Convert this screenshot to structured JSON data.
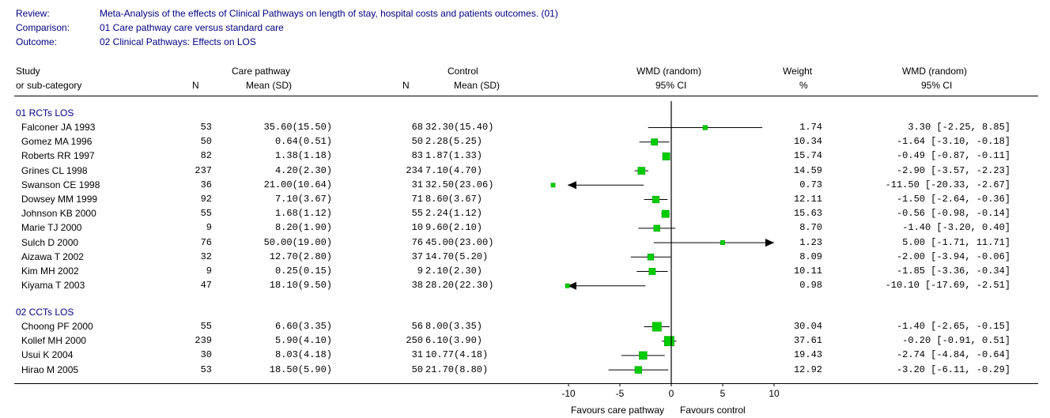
{
  "meta": {
    "review_label": "Review:",
    "review": "Meta-Analysis of the effects of Clinical Pathways on length of stay, hospital costs and patients outcomes. (01)",
    "comparison_label": "Comparison:",
    "comparison": "01 Care pathway care versus standard care",
    "outcome_label": "Outcome:",
    "outcome": "02 Clinical Pathways: Effects on LOS"
  },
  "headers": {
    "study1": "Study",
    "study2": "or sub-category",
    "n": "N",
    "care1": "Care pathway",
    "care2": "Mean (SD)",
    "control1": "Control",
    "control2": "Mean (SD)",
    "wmd1": "WMD (random)",
    "wmd2": "95% CI",
    "weight1": "Weight",
    "weight2": "%",
    "wmdr1": "WMD (random)",
    "wmdr2": "95% CI"
  },
  "chart_data": {
    "type": "forest",
    "x_ticks": [
      "-10",
      "-5",
      "0",
      "5",
      "10"
    ],
    "xlim": [
      -10,
      10
    ],
    "favours_left": "Favours care pathway",
    "favours_right": "Favours control",
    "groups": [
      {
        "name": "01 RCTs LOS",
        "studies": [
          {
            "study": "Falconer JA 1993",
            "n1": "53",
            "mean_sd1": "35.60(15.50)",
            "n2": "68",
            "mean_sd2": "32.30(15.40)",
            "weight": "1.74",
            "wmd_ci": "3.30 [-2.25, 8.85]",
            "est": 3.3,
            "lo": -2.25,
            "hi": 8.85
          },
          {
            "study": "Gomez MA 1996",
            "n1": "50",
            "mean_sd1": "0.64(0.51)",
            "n2": "50",
            "mean_sd2": "2.28(5.25)",
            "weight": "10.34",
            "wmd_ci": "-1.64 [-3.10, -0.18]",
            "est": -1.64,
            "lo": -3.1,
            "hi": -0.18
          },
          {
            "study": "Roberts RR 1997",
            "n1": "82",
            "mean_sd1": "1.38(1.18)",
            "n2": "83",
            "mean_sd2": "1.87(1.33)",
            "weight": "15.74",
            "wmd_ci": "-0.49 [-0.87, -0.11]",
            "est": -0.49,
            "lo": -0.87,
            "hi": -0.11
          },
          {
            "study": "Grines CL 1998",
            "n1": "237",
            "mean_sd1": "4.20(2.30)",
            "n2": "234",
            "mean_sd2": "7.10(4.70)",
            "weight": "14.59",
            "wmd_ci": "-2.90 [-3.57, -2.23]",
            "est": -2.9,
            "lo": -3.57,
            "hi": -2.23
          },
          {
            "study": "Swanson CE 1998",
            "n1": "36",
            "mean_sd1": "21.00(10.64)",
            "n2": "31",
            "mean_sd2": "32.50(23.06)",
            "weight": "0.73",
            "wmd_ci": "-11.50 [-20.33, -2.67]",
            "est": -11.5,
            "lo": -20.33,
            "hi": -2.67
          },
          {
            "study": "Dowsey MM 1999",
            "n1": "92",
            "mean_sd1": "7.10(3.67)",
            "n2": "71",
            "mean_sd2": "8.60(3.67)",
            "weight": "12.11",
            "wmd_ci": "-1.50 [-2.64, -0.36]",
            "est": -1.5,
            "lo": -2.64,
            "hi": -0.36
          },
          {
            "study": "Johnson KB 2000",
            "n1": "55",
            "mean_sd1": "1.68(1.12)",
            "n2": "55",
            "mean_sd2": "2.24(1.12)",
            "weight": "15.63",
            "wmd_ci": "-0.56 [-0.98, -0.14]",
            "est": -0.56,
            "lo": -0.98,
            "hi": -0.14
          },
          {
            "study": "Marie TJ 2000",
            "n1": "9",
            "mean_sd1": "8.20(1.90)",
            "n2": "10",
            "mean_sd2": "9.60(2.10)",
            "weight": "8.70",
            "wmd_ci": "-1.40 [-3.20, 0.40]",
            "est": -1.4,
            "lo": -3.2,
            "hi": 0.4
          },
          {
            "study": "Sulch D 2000",
            "n1": "76",
            "mean_sd1": "50.00(19.00)",
            "n2": "76",
            "mean_sd2": "45.00(23.00)",
            "weight": "1.23",
            "wmd_ci": "5.00 [-1.71, 11.71]",
            "est": 5.0,
            "lo": -1.71,
            "hi": 11.71
          },
          {
            "study": "Aizawa T 2002",
            "n1": "32",
            "mean_sd1": "12.70(2.80)",
            "n2": "37",
            "mean_sd2": "14.70(5.20)",
            "weight": "8.09",
            "wmd_ci": "-2.00 [-3.94, -0.06]",
            "est": -2.0,
            "lo": -3.94,
            "hi": -0.06
          },
          {
            "study": "Kim MH 2002",
            "n1": "9",
            "mean_sd1": "0.25(0.15)",
            "n2": "9",
            "mean_sd2": "2.10(2.30)",
            "weight": "10.11",
            "wmd_ci": "-1.85 [-3.36, -0.34]",
            "est": -1.85,
            "lo": -3.36,
            "hi": -0.34
          },
          {
            "study": "Kiyama T 2003",
            "n1": "47",
            "mean_sd1": "18.10(9.50)",
            "n2": "38",
            "mean_sd2": "28.20(22.30)",
            "weight": "0.98",
            "wmd_ci": "-10.10 [-17.69, -2.51]",
            "est": -10.1,
            "lo": -17.69,
            "hi": -2.51
          }
        ]
      },
      {
        "name": "02 CCTs LOS",
        "studies": [
          {
            "study": "Choong PF 2000",
            "n1": "55",
            "mean_sd1": "6.60(3.35)",
            "n2": "56",
            "mean_sd2": "8.00(3.35)",
            "weight": "30.04",
            "wmd_ci": "-1.40 [-2.65, -0.15]",
            "est": -1.4,
            "lo": -2.65,
            "hi": -0.15
          },
          {
            "study": "Kollef MH 2000",
            "n1": "239",
            "mean_sd1": "5.90(4.10)",
            "n2": "250",
            "mean_sd2": "6.10(3.90)",
            "weight": "37.61",
            "wmd_ci": "-0.20 [-0.91, 0.51]",
            "est": -0.2,
            "lo": -0.91,
            "hi": 0.51
          },
          {
            "study": "Usui K 2004",
            "n1": "30",
            "mean_sd1": "8.03(4.18)",
            "n2": "31",
            "mean_sd2": "10.77(4.18)",
            "weight": "19.43",
            "wmd_ci": "-2.74 [-4.84, -0.64]",
            "est": -2.74,
            "lo": -4.84,
            "hi": -0.64
          },
          {
            "study": "Hirao M 2005",
            "n1": "53",
            "mean_sd1": "18.50(5.90)",
            "n2": "50",
            "mean_sd2": "21.70(8.80)",
            "weight": "12.92",
            "wmd_ci": "-3.20 [-6.11, -0.29]",
            "est": -3.2,
            "lo": -6.11,
            "hi": -0.29
          }
        ]
      }
    ]
  }
}
